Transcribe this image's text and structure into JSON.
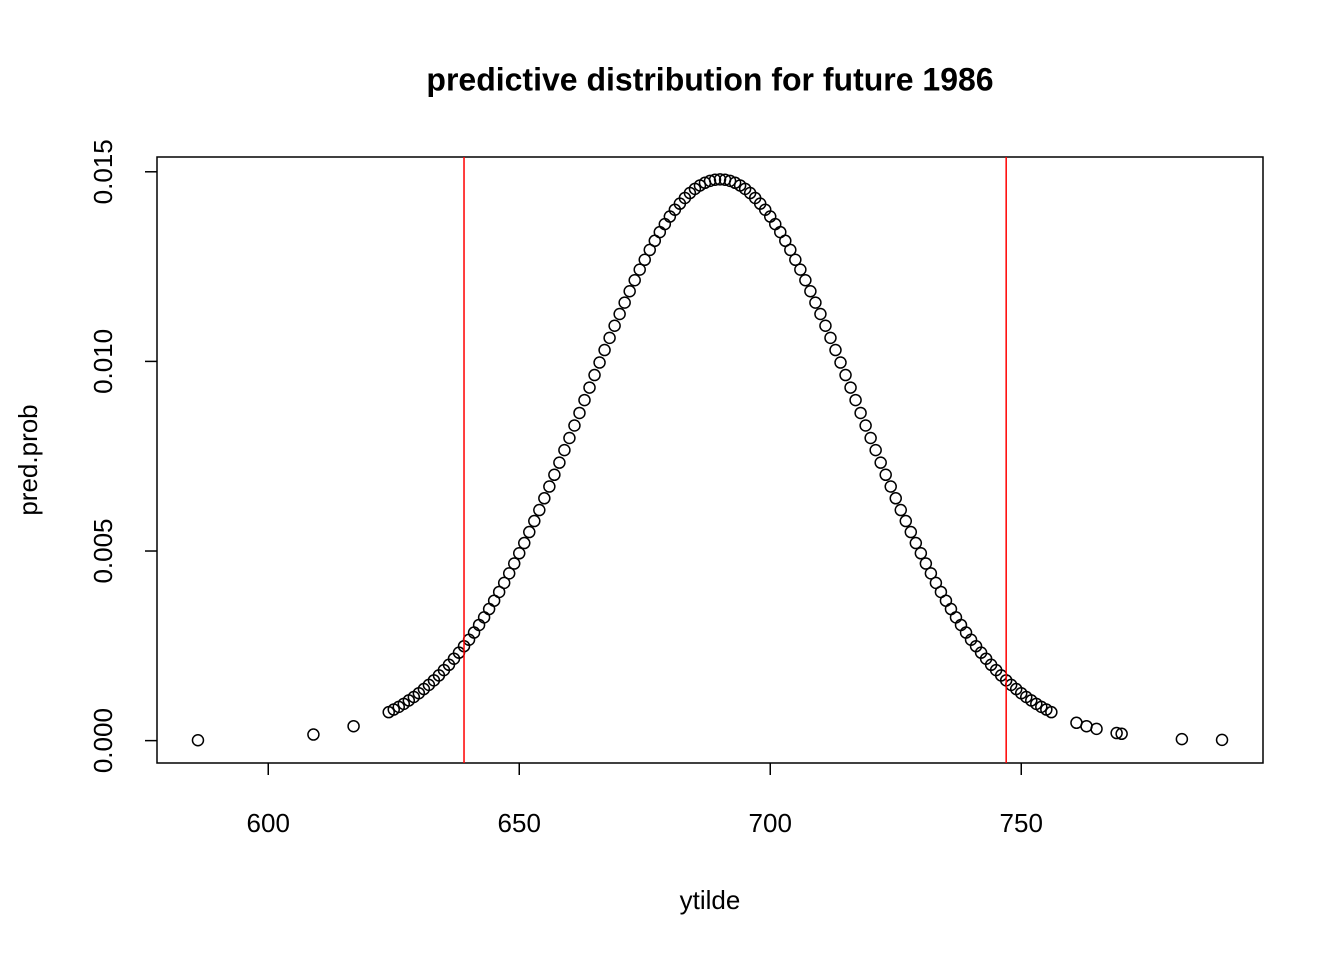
{
  "chart_data": {
    "type": "scatter",
    "title": "predictive distribution for future 1986",
    "x_label": "ytilde",
    "y_label": "pred.prob",
    "x": [
      586,
      609,
      617,
      624,
      625,
      626,
      627,
      628,
      629,
      630,
      631,
      632,
      633,
      634,
      635,
      636,
      637,
      638,
      639,
      640,
      641,
      642,
      643,
      644,
      645,
      646,
      647,
      648,
      649,
      650,
      651,
      652,
      653,
      654,
      655,
      656,
      657,
      658,
      659,
      660,
      661,
      662,
      663,
      664,
      665,
      666,
      667,
      668,
      669,
      670,
      671,
      672,
      673,
      674,
      675,
      676,
      677,
      678,
      679,
      680,
      681,
      682,
      683,
      684,
      685,
      686,
      687,
      688,
      689,
      690,
      691,
      692,
      693,
      694,
      695,
      696,
      697,
      698,
      699,
      700,
      701,
      702,
      703,
      704,
      705,
      706,
      707,
      708,
      709,
      710,
      711,
      712,
      713,
      714,
      715,
      716,
      717,
      718,
      719,
      720,
      721,
      722,
      723,
      724,
      725,
      726,
      727,
      728,
      729,
      730,
      731,
      732,
      733,
      734,
      735,
      736,
      737,
      738,
      739,
      740,
      741,
      742,
      743,
      744,
      745,
      746,
      747,
      748,
      749,
      750,
      751,
      752,
      753,
      754,
      755,
      756,
      761,
      763,
      765,
      769,
      770,
      782,
      790
    ],
    "values": [
      1e-05,
      0.00016,
      0.00038,
      0.00075,
      0.00082,
      0.00089,
      0.00097,
      0.00106,
      0.00115,
      0.00125,
      0.00136,
      0.00147,
      0.00159,
      0.00172,
      0.00186,
      0.002,
      0.00216,
      0.00232,
      0.00249,
      0.00266,
      0.00285,
      0.00305,
      0.00325,
      0.00347,
      0.00369,
      0.00392,
      0.00416,
      0.00441,
      0.00467,
      0.00494,
      0.00521,
      0.0055,
      0.00579,
      0.00608,
      0.00639,
      0.0067,
      0.00701,
      0.00733,
      0.00766,
      0.00798,
      0.00831,
      0.00864,
      0.00898,
      0.00931,
      0.00964,
      0.00997,
      0.0103,
      0.01062,
      0.01094,
      0.01125,
      0.01155,
      0.01185,
      0.01214,
      0.01242,
      0.01268,
      0.01294,
      0.01318,
      0.01341,
      0.01362,
      0.01382,
      0.014,
      0.01416,
      0.01431,
      0.01444,
      0.01455,
      0.01464,
      0.01471,
      0.01476,
      0.01479,
      0.0148,
      0.01479,
      0.01476,
      0.01471,
      0.01464,
      0.01455,
      0.01444,
      0.01431,
      0.01416,
      0.014,
      0.01382,
      0.01362,
      0.01341,
      0.01318,
      0.01294,
      0.01268,
      0.01242,
      0.01214,
      0.01185,
      0.01155,
      0.01125,
      0.01094,
      0.01062,
      0.0103,
      0.00997,
      0.00964,
      0.00931,
      0.00898,
      0.00864,
      0.00831,
      0.00798,
      0.00766,
      0.00733,
      0.00701,
      0.0067,
      0.00639,
      0.00608,
      0.00579,
      0.0055,
      0.00521,
      0.00494,
      0.00467,
      0.00441,
      0.00416,
      0.00392,
      0.00369,
      0.00347,
      0.00325,
      0.00305,
      0.00285,
      0.00266,
      0.00249,
      0.00232,
      0.00216,
      0.002,
      0.00186,
      0.00172,
      0.00159,
      0.00147,
      0.00136,
      0.00125,
      0.00115,
      0.00106,
      0.00097,
      0.00089,
      0.00082,
      0.00075,
      0.00047,
      0.00038,
      0.00031,
      0.0002,
      0.00018,
      4e-05,
      2e-05
    ],
    "color": "#000000",
    "vlines": [
      639,
      747
    ],
    "vline_color": "#ff0000",
    "xlim": [
      577.84,
      798.16
    ],
    "ylim": [
      -0.00059,
      0.01539
    ],
    "xticks": [
      600,
      650,
      700,
      750
    ],
    "yticks": [
      {
        "value": 0,
        "label": "0.000"
      },
      0.005,
      {
        "value": 0.01,
        "label": "0.010"
      },
      0.015
    ]
  }
}
